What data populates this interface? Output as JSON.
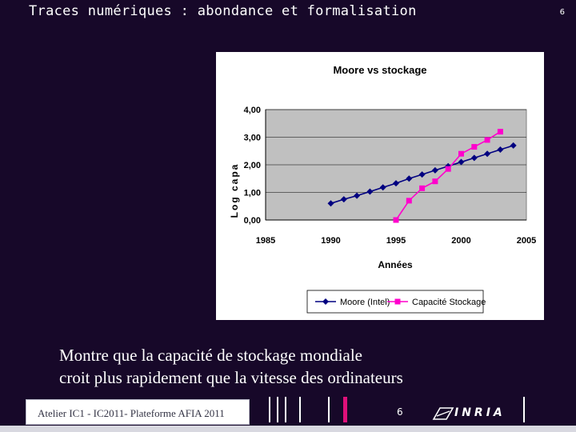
{
  "slide": {
    "title": "Traces numériques : abondance et formalisation",
    "page_number": "6",
    "caption_lines": [
      "Montre que la capacité de stockage mondiale",
      "croit plus rapidement que la vitesse des ordinateurs"
    ]
  },
  "footer": {
    "label": "Atelier IC1 - IC2011- Plateforme AFIA 2011",
    "page_number": "6",
    "logo_text": "INRIA",
    "accent_color": "#e0107a"
  },
  "chart_data": {
    "type": "line",
    "title": "Moore vs stockage",
    "xlabel": "Années",
    "ylabel": "Log capa",
    "xlim": [
      1985,
      2005
    ],
    "ylim": [
      0,
      4
    ],
    "x_ticks": [
      "1985",
      "1990",
      "1995",
      "2000",
      "2005"
    ],
    "y_ticks": [
      "0,00",
      "1,00",
      "2,00",
      "3,00",
      "4,00"
    ],
    "grid": true,
    "legend": "bottom",
    "plot_background": "#c0c0c0",
    "series": [
      {
        "name": "Moore (Intel)",
        "color": "#000080",
        "marker": "diamond",
        "x": [
          1990,
          1991,
          1992,
          1993,
          1994,
          1995,
          1996,
          1997,
          1998,
          1999,
          2000,
          2001,
          2002,
          2003,
          2004
        ],
        "y": [
          0.6,
          0.75,
          0.88,
          1.03,
          1.18,
          1.33,
          1.5,
          1.65,
          1.8,
          1.95,
          2.1,
          2.25,
          2.4,
          2.55,
          2.7
        ]
      },
      {
        "name": "Capacité Stockage",
        "color": "#ff00cc",
        "marker": "square",
        "x": [
          1995,
          1996,
          1997,
          1998,
          1999,
          2000,
          2001,
          2002,
          2003
        ],
        "y": [
          0.0,
          0.7,
          1.15,
          1.4,
          1.85,
          2.4,
          2.65,
          2.9,
          3.2
        ]
      }
    ]
  }
}
